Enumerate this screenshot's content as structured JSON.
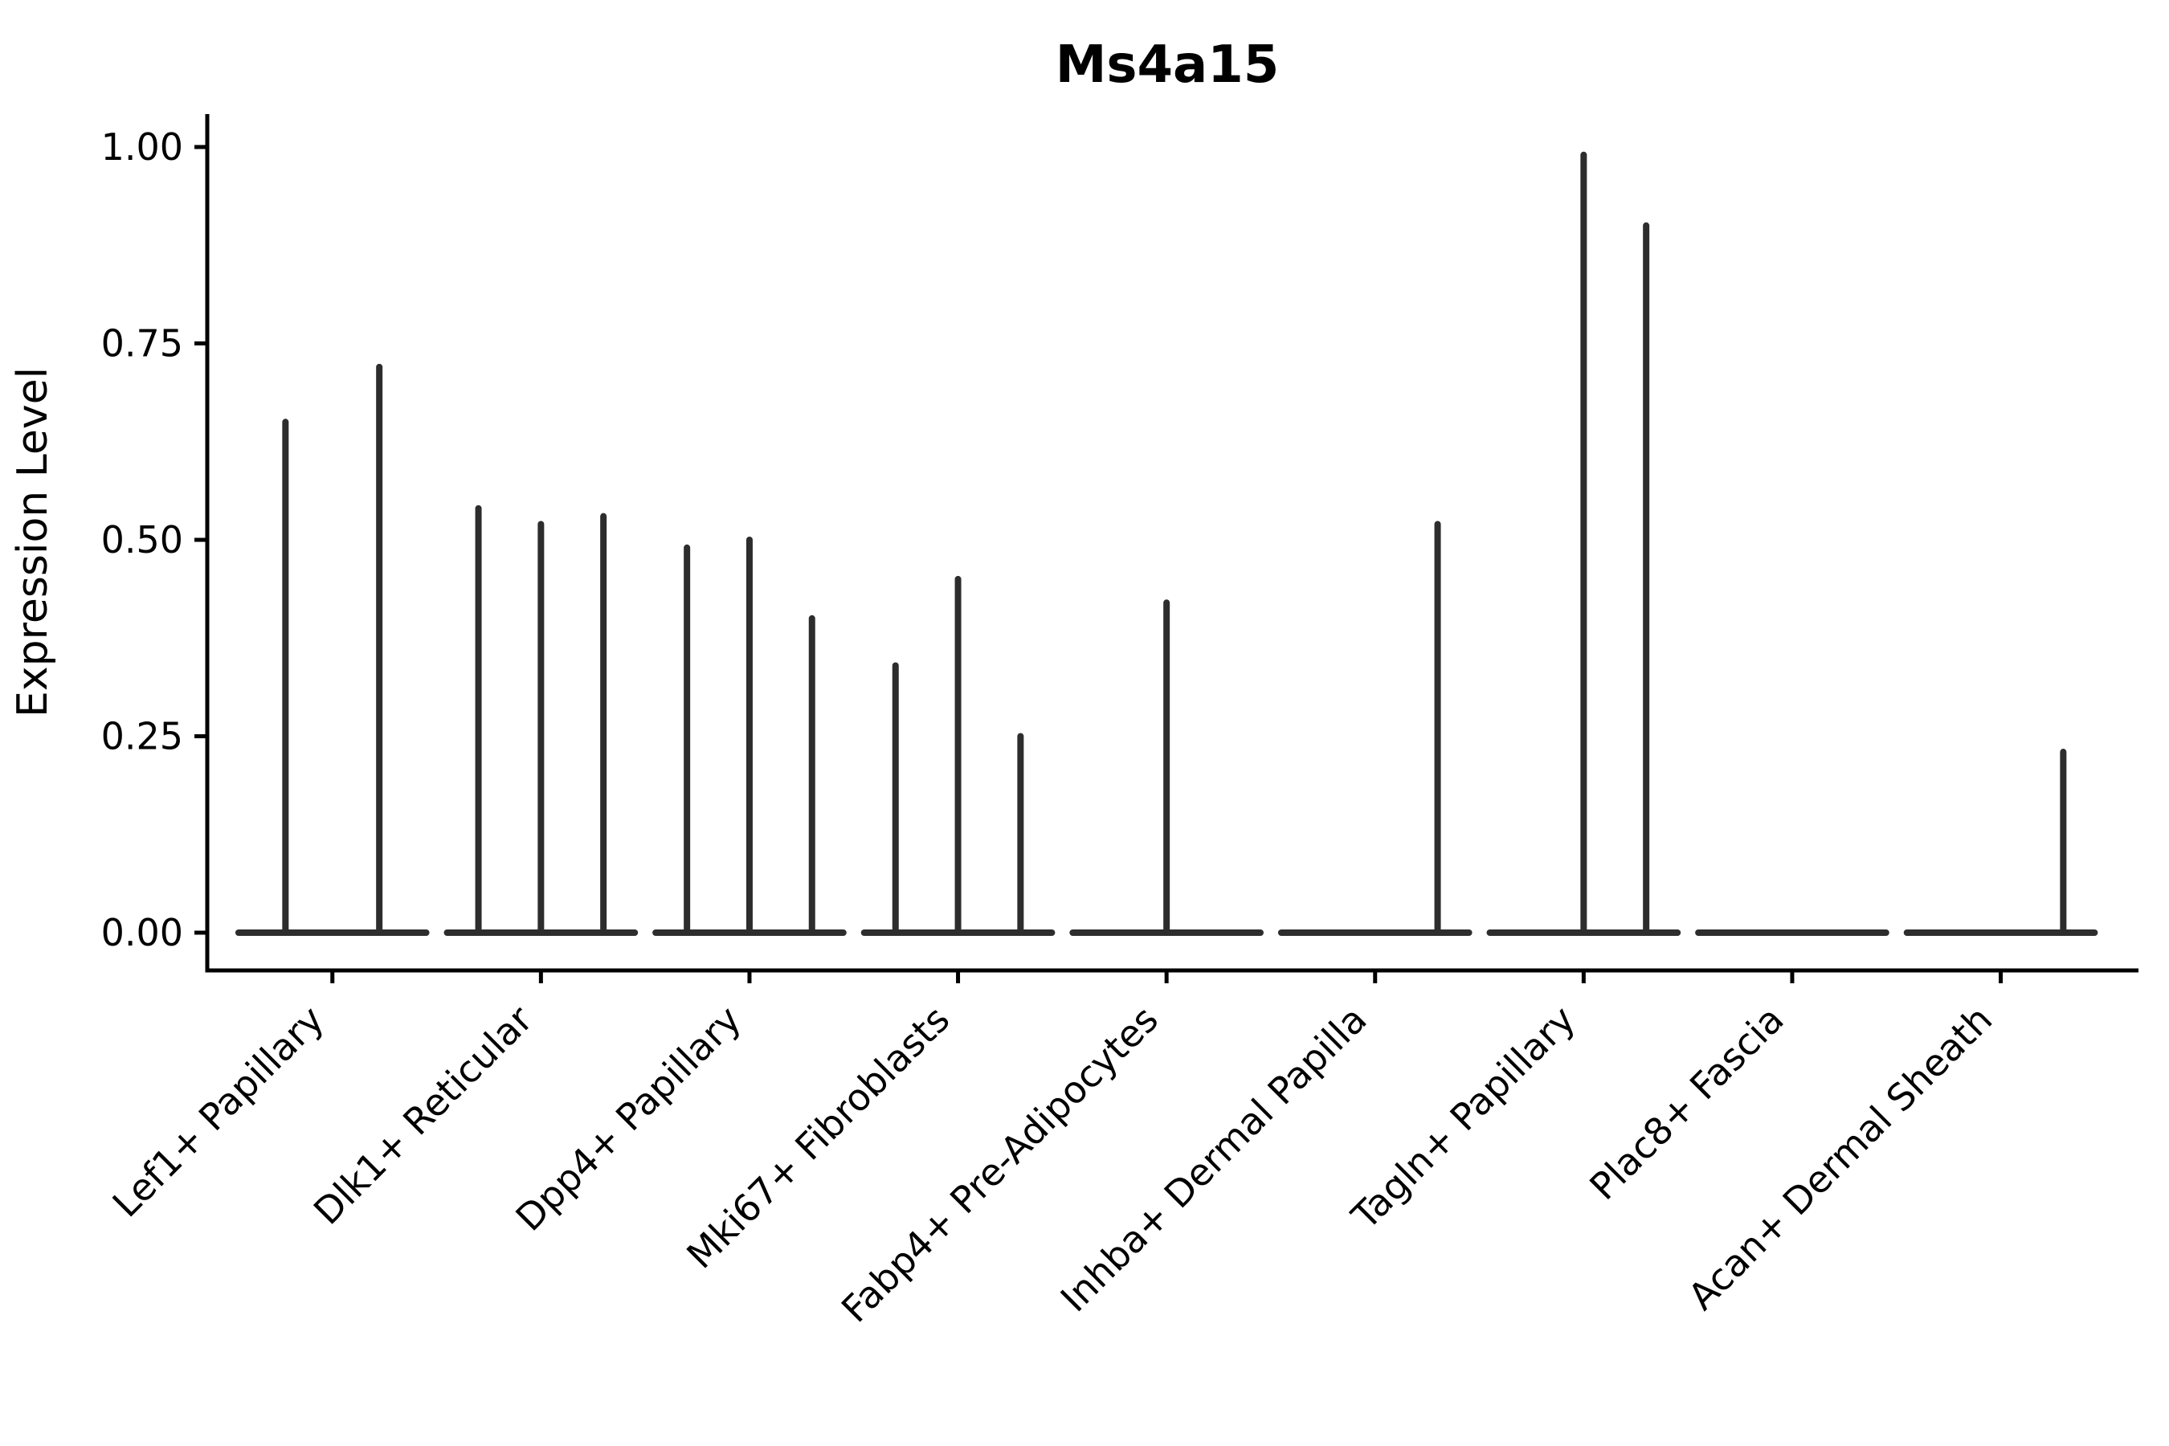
{
  "chart_data": {
    "type": "violin",
    "title": "Ms4a15",
    "ylabel": "Expression Level",
    "xlabel": "",
    "ylim": [
      0,
      1.0
    ],
    "grid": false,
    "legend": "none",
    "axis_color": "#000000",
    "violin_color": "#2d2d2d",
    "background_color": "#ffffff",
    "yticks": [
      {
        "value": 0.0,
        "label": "0.00"
      },
      {
        "value": 0.25,
        "label": "0.25"
      },
      {
        "value": 0.5,
        "label": "0.50"
      },
      {
        "value": 0.75,
        "label": "0.75"
      },
      {
        "value": 1.0,
        "label": "1.00"
      }
    ],
    "categories": [
      {
        "label": "Lef1+ Papillary",
        "spikes": [
          {
            "pos": 0.25,
            "value": 0.65
          },
          {
            "pos": 0.75,
            "value": 0.72
          }
        ]
      },
      {
        "label": "Dlk1+ Reticular",
        "spikes": [
          {
            "pos": 0.167,
            "value": 0.54
          },
          {
            "pos": 0.5,
            "value": 0.52
          },
          {
            "pos": 0.833,
            "value": 0.53
          }
        ]
      },
      {
        "label": "Dpp4+ Papillary",
        "spikes": [
          {
            "pos": 0.167,
            "value": 0.49
          },
          {
            "pos": 0.5,
            "value": 0.5
          },
          {
            "pos": 0.833,
            "value": 0.4
          }
        ]
      },
      {
        "label": "Mki67+ Fibroblasts",
        "spikes": [
          {
            "pos": 0.167,
            "value": 0.34
          },
          {
            "pos": 0.5,
            "value": 0.45
          },
          {
            "pos": 0.833,
            "value": 0.25
          }
        ]
      },
      {
        "label": "Fabp4+ Pre-Adipocytes",
        "spikes": [
          {
            "pos": 0.5,
            "value": 0.42
          }
        ]
      },
      {
        "label": "Inhba+ Dermal Papilla",
        "spikes": [
          {
            "pos": 0.833,
            "value": 0.52
          }
        ]
      },
      {
        "label": "Tagln+ Papillary",
        "spikes": [
          {
            "pos": 0.5,
            "value": 0.99
          },
          {
            "pos": 0.833,
            "value": 0.9
          }
        ]
      },
      {
        "label": "Plac8+ Fascia",
        "spikes": []
      },
      {
        "label": "Acan+ Dermal Sheath",
        "spikes": [
          {
            "pos": 0.833,
            "value": 0.23
          }
        ]
      }
    ]
  }
}
